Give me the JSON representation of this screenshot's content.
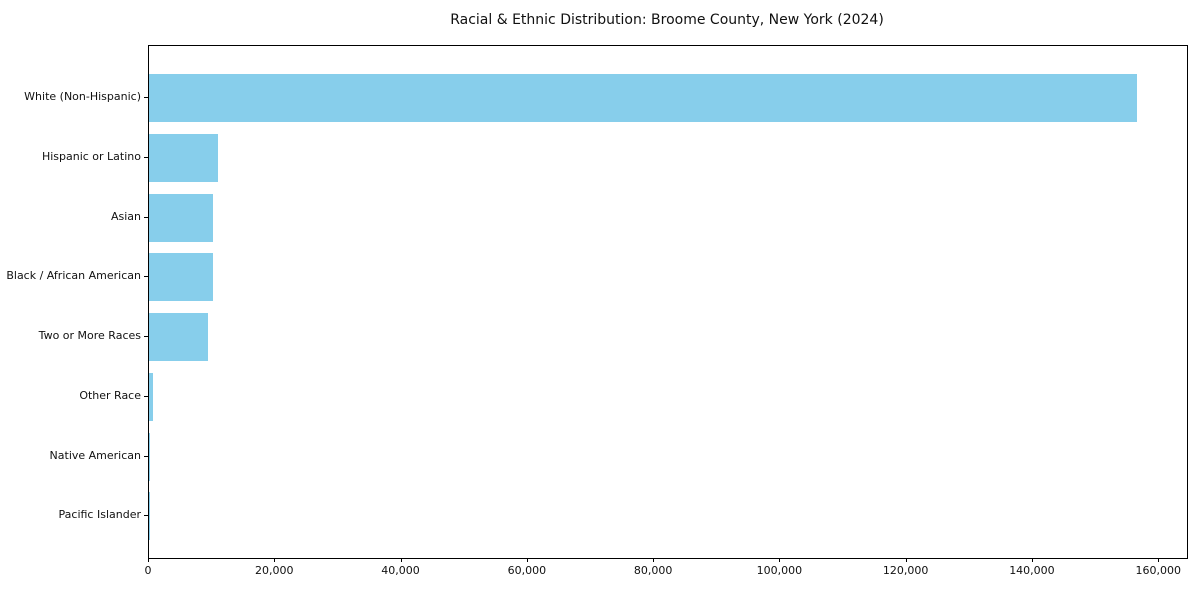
{
  "title": "Racial & Ethnic Distribution: Broome County, New York (2024)",
  "chart_data": {
    "type": "bar",
    "orientation": "horizontal",
    "title": "Racial & Ethnic Distribution: Broome County, New York (2024)",
    "categories": [
      "White (Non-Hispanic)",
      "Hispanic or Latino",
      "Asian",
      "Black / African American",
      "Two or More Races",
      "Other Race",
      "Native American",
      "Pacific Islander"
    ],
    "values": [
      156500,
      11000,
      10200,
      10150,
      9300,
      620,
      150,
      40
    ],
    "xlabel": "",
    "ylabel": "",
    "xlim": [
      0,
      164400
    ],
    "xticks": [
      0,
      20000,
      40000,
      60000,
      80000,
      100000,
      120000,
      140000,
      160000
    ],
    "xtick_labels": [
      "0",
      "20,000",
      "40,000",
      "60,000",
      "80,000",
      "100,000",
      "120,000",
      "140,000",
      "160,000"
    ],
    "bar_color": "#87CEEB",
    "axis_color": "#000000",
    "text_color": "#111111",
    "background": "#FFFFFF",
    "grid": false,
    "legend": null
  }
}
